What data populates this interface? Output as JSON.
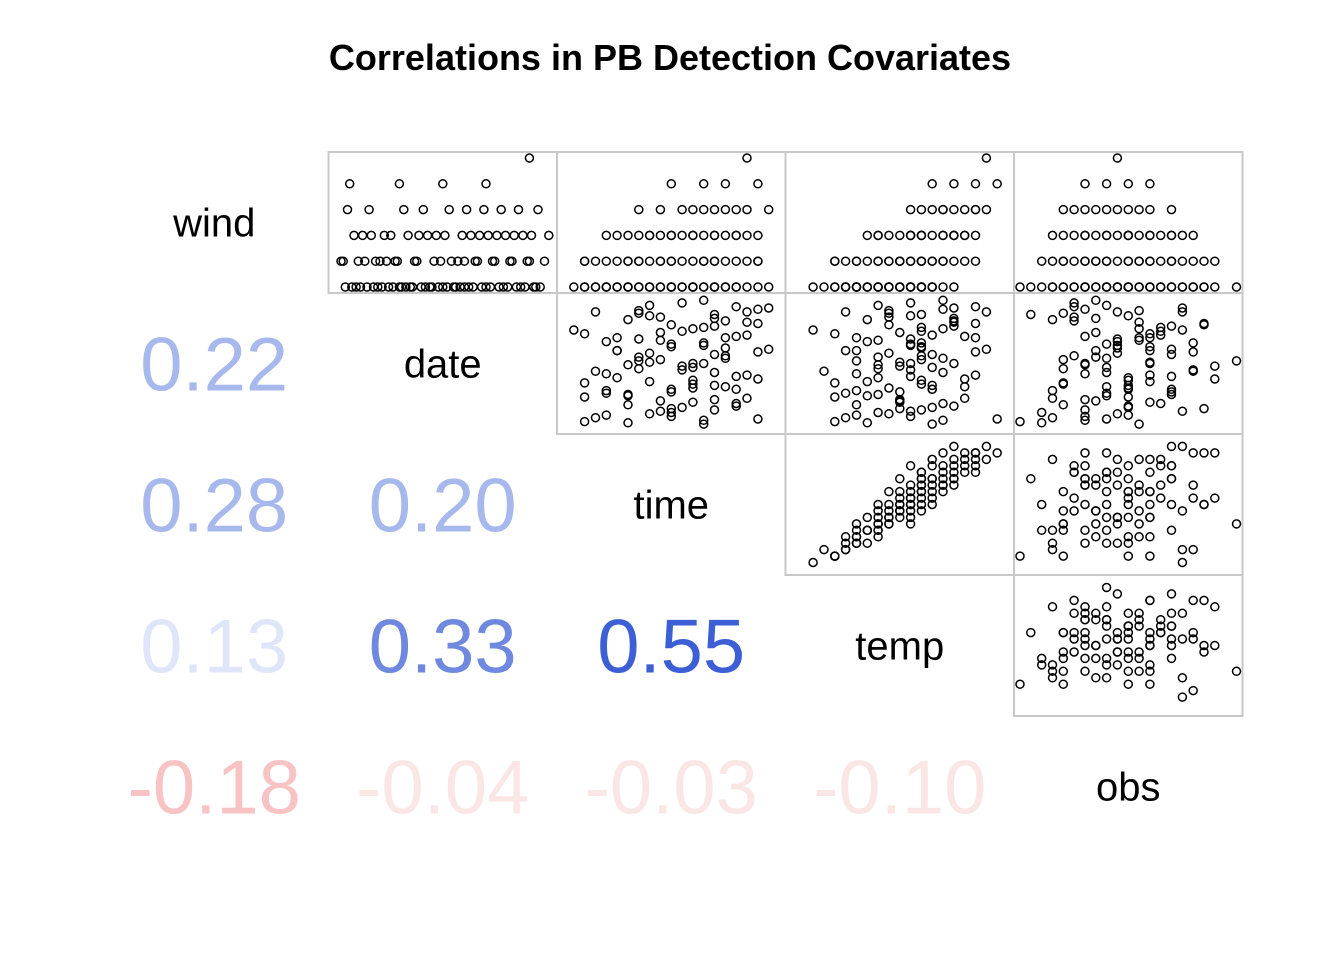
{
  "chart_data": {
    "type": "scatter-matrix",
    "title": "Correlations in PB Detection Covariates",
    "variables": [
      "wind",
      "date",
      "time",
      "temp",
      "obs"
    ],
    "correlations": [
      {
        "row": "date",
        "col": "wind",
        "value": 0.22,
        "label": "0.22",
        "color": "#a7b8ed"
      },
      {
        "row": "time",
        "col": "wind",
        "value": 0.28,
        "label": "0.28",
        "color": "#a7b8ed"
      },
      {
        "row": "time",
        "col": "date",
        "value": 0.2,
        "label": "0.20",
        "color": "#a7b8ed"
      },
      {
        "row": "temp",
        "col": "wind",
        "value": 0.13,
        "label": "0.13",
        "color": "#e0e6f9"
      },
      {
        "row": "temp",
        "col": "date",
        "value": 0.33,
        "label": "0.33",
        "color": "#6f88e0"
      },
      {
        "row": "temp",
        "col": "time",
        "value": 0.55,
        "label": "0.55",
        "color": "#3c5fd6"
      },
      {
        "row": "obs",
        "col": "wind",
        "value": -0.18,
        "label": "-0.18",
        "color": "#f8c3c3"
      },
      {
        "row": "obs",
        "col": "date",
        "value": -0.04,
        "label": "-0.04",
        "color": "#fbe6e6"
      },
      {
        "row": "obs",
        "col": "time",
        "value": -0.03,
        "label": "-0.03",
        "color": "#fbe6e6"
      },
      {
        "row": "obs",
        "col": "temp",
        "value": -0.1,
        "label": "-0.10",
        "color": "#fbe6e6"
      }
    ],
    "observations": {
      "count": 100,
      "note_scale": "standardized units",
      "wind": [
        0.0,
        0.0,
        0.0,
        0.0,
        0.0,
        0.0,
        0.0,
        0.0,
        0.0,
        0.0,
        0.0,
        0.0,
        0.0,
        0.0,
        0.0,
        0.0,
        0.0,
        0.0,
        0.0,
        0.0,
        0.0,
        0.0,
        0.0,
        0.0,
        0.0,
        0.0,
        0.0,
        0.0,
        0.0,
        0.0,
        0.0,
        0.0,
        0.0,
        0.0,
        0.0,
        0.0,
        0.0,
        0.0,
        0.0,
        0.0,
        0.2,
        0.2,
        0.2,
        0.2,
        0.2,
        0.2,
        0.2,
        0.2,
        0.2,
        0.2,
        0.2,
        0.2,
        0.2,
        0.2,
        0.2,
        0.2,
        0.2,
        0.2,
        0.2,
        0.2,
        0.2,
        0.2,
        0.2,
        0.2,
        0.2,
        0.4,
        0.4,
        0.4,
        0.4,
        0.4,
        0.4,
        0.4,
        0.4,
        0.4,
        0.4,
        0.4,
        0.4,
        0.4,
        0.4,
        0.4,
        0.4,
        0.4,
        0.4,
        0.4,
        0.4,
        0.6,
        0.6,
        0.6,
        0.6,
        0.6,
        0.6,
        0.6,
        0.6,
        0.6,
        0.6,
        0.8,
        0.8,
        0.8,
        0.8,
        1.0
      ],
      "date": [
        0.05,
        0.12,
        0.18,
        0.22,
        0.27,
        0.31,
        0.36,
        0.4,
        0.44,
        0.48,
        0.52,
        0.56,
        0.6,
        0.64,
        0.68,
        0.72,
        0.76,
        0.8,
        0.84,
        0.88,
        0.92,
        0.95,
        0.1,
        0.2,
        0.3,
        0.35,
        0.45,
        0.55,
        0.62,
        0.7,
        0.78,
        0.86,
        0.93,
        0.08,
        0.15,
        0.25,
        0.33,
        0.42,
        0.5,
        0.58,
        0.04,
        0.14,
        0.24,
        0.28,
        0.38,
        0.46,
        0.54,
        0.6,
        0.66,
        0.74,
        0.82,
        0.9,
        0.97,
        0.11,
        0.19,
        0.29,
        0.37,
        0.49,
        0.57,
        0.65,
        0.73,
        0.81,
        0.89,
        0.03,
        0.21,
        0.09,
        0.17,
        0.26,
        0.34,
        0.43,
        0.51,
        0.59,
        0.67,
        0.75,
        0.83,
        0.91,
        0.99,
        0.13,
        0.23,
        0.39,
        0.47,
        0.63,
        0.71,
        0.79,
        0.87,
        0.06,
        0.16,
        0.32,
        0.41,
        0.53,
        0.61,
        0.69,
        0.77,
        0.85,
        0.94,
        0.07,
        0.3,
        0.5,
        0.7,
        0.9
      ],
      "time": [
        0.1,
        0.5,
        0.3,
        0.7,
        0.2,
        0.6,
        0.4,
        0.8,
        0.15,
        0.55,
        0.35,
        0.75,
        0.25,
        0.65,
        0.45,
        0.85,
        0.05,
        0.5,
        0.3,
        0.7,
        0.9,
        0.4,
        0.2,
        0.6,
        0.8,
        0.1,
        0.55,
        0.35,
        0.75,
        0.25,
        0.65,
        0.45,
        0.95,
        0.15,
        0.5,
        0.3,
        0.7,
        0.2,
        0.6,
        0.4,
        0.3,
        0.7,
        0.1,
        0.5,
        0.9,
        0.35,
        0.75,
        0.25,
        0.65,
        0.45,
        0.85,
        0.15,
        0.55,
        0.4,
        0.8,
        0.2,
        0.6,
        0.3,
        0.7,
        0.5,
        0.1,
        0.9,
        0.35,
        0.65,
        0.45,
        0.5,
        0.8,
        0.3,
        0.6,
        0.7,
        0.4,
        0.9,
        0.2,
        0.55,
        0.75,
        0.35,
        0.65,
        0.45,
        0.85,
        0.25,
        0.6,
        0.5,
        0.8,
        0.7,
        0.4,
        0.65,
        0.55,
        0.75,
        0.85,
        0.45,
        0.95,
        0.35,
        0.6,
        0.7,
        0.8,
        0.9,
        0.5,
        0.65,
        0.75,
        0.85
      ],
      "temp": [
        0.2,
        0.4,
        0.3,
        0.5,
        0.25,
        0.45,
        0.35,
        0.55,
        0.15,
        0.5,
        0.3,
        0.6,
        0.25,
        0.55,
        0.4,
        0.65,
        0.1,
        0.45,
        0.35,
        0.6,
        0.7,
        0.4,
        0.3,
        0.5,
        0.65,
        0.2,
        0.55,
        0.4,
        0.6,
        0.3,
        0.6,
        0.45,
        0.75,
        0.25,
        0.5,
        0.35,
        0.65,
        0.3,
        0.55,
        0.45,
        0.35,
        0.6,
        0.2,
        0.5,
        0.8,
        0.4,
        0.7,
        0.3,
        0.6,
        0.5,
        0.75,
        0.25,
        0.55,
        0.45,
        0.7,
        0.3,
        0.6,
        0.4,
        0.65,
        0.55,
        0.2,
        0.85,
        0.45,
        0.65,
        0.5,
        0.55,
        0.75,
        0.4,
        0.6,
        0.7,
        0.5,
        0.85,
        0.35,
        0.6,
        0.75,
        0.45,
        0.7,
        0.55,
        0.8,
        0.4,
        0.65,
        0.6,
        0.8,
        0.75,
        0.55,
        0.7,
        0.65,
        0.8,
        0.85,
        0.6,
        0.9,
        0.55,
        0.7,
        0.75,
        0.85,
        0.95,
        0.65,
        0.75,
        0.85,
        0.9
      ],
      "obs": [
        0.0,
        0.1,
        0.2,
        0.3,
        0.4,
        0.5,
        0.6,
        0.7,
        0.8,
        0.9,
        1.0,
        0.25,
        0.35,
        0.45,
        0.55,
        0.65,
        0.75,
        0.85,
        0.15,
        0.05,
        0.3,
        0.4,
        0.5,
        0.6,
        0.7,
        0.2,
        0.8,
        0.35,
        0.45,
        0.55,
        0.65,
        0.25,
        0.75,
        0.15,
        0.85,
        0.4,
        0.5,
        0.3,
        0.6,
        0.45,
        0.1,
        0.3,
        0.5,
        0.7,
        0.9,
        0.2,
        0.4,
        0.6,
        0.8,
        0.35,
        0.55,
        0.75,
        0.25,
        0.45,
        0.65,
        0.15,
        0.5,
        0.3,
        0.7,
        0.4,
        0.6,
        0.85,
        0.2,
        0.55,
        0.35,
        0.3,
        0.5,
        0.7,
        0.2,
        0.4,
        0.6,
        0.8,
        0.45,
        0.65,
        0.25,
        0.55,
        0.35,
        0.75,
        0.15,
        0.5,
        0.4,
        0.6,
        0.3,
        0.7,
        0.5,
        0.3,
        0.5,
        0.4,
        0.6,
        0.2,
        0.7,
        0.45,
        0.55,
        0.35,
        0.25,
        0.4,
        0.5,
        0.3,
        0.6,
        0.45
      ]
    }
  }
}
